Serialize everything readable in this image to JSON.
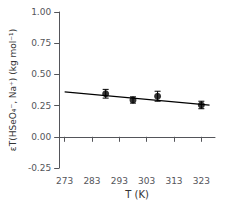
{
  "chart_data": {
    "type": "scatter",
    "xlabel": "T (K)",
    "ylabel": "εT(HSeO₄⁻, Na⁺) (kg mol⁻¹)",
    "series": [
      {
        "type": "line",
        "x": [
          273,
          326
        ],
        "values": [
          0.36,
          0.254
        ],
        "color": "#000000"
      },
      {
        "type": "scatter",
        "x": [
          288,
          298,
          307,
          323
        ],
        "values": [
          0.345,
          0.295,
          0.325,
          0.255
        ],
        "y_err": [
          0.035,
          0.025,
          0.04,
          0.03
        ],
        "color": "#000000",
        "marker": "circle"
      }
    ],
    "xlim": [
      271,
      328
    ],
    "ylim": [
      -0.25,
      1.0
    ],
    "xticks": [
      273,
      283,
      293,
      303,
      313,
      323
    ],
    "yticks": [
      -0.25,
      {
        "value": 0,
        "label": "0.00"
      },
      0.25,
      {
        "value": 0.5,
        "label": "0.50"
      },
      0.75,
      {
        "value": 1,
        "label": "1.00"
      }
    ],
    "grid": false
  }
}
